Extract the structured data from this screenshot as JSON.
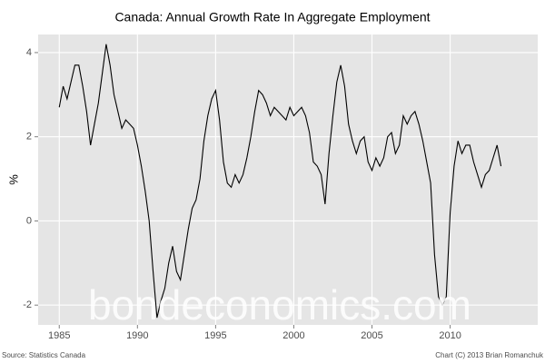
{
  "chart_data": {
    "type": "line",
    "title": "Canada: Annual Growth Rate In Aggregate Employment",
    "y_label": "%",
    "source": "Source: Statistics Canada",
    "credit": "Chart (C) 2013 Brian Romanchuk",
    "watermark": "bondeconomics.com",
    "x": [
      1985.0,
      1985.25,
      1985.5,
      1985.75,
      1986.0,
      1986.25,
      1986.5,
      1986.75,
      1987.0,
      1987.25,
      1987.5,
      1987.75,
      1988.0,
      1988.25,
      1988.5,
      1988.75,
      1989.0,
      1989.25,
      1989.5,
      1989.75,
      1990.0,
      1990.25,
      1990.5,
      1990.75,
      1991.0,
      1991.25,
      1991.5,
      1991.75,
      1992.0,
      1992.25,
      1992.5,
      1992.75,
      1993.0,
      1993.25,
      1993.5,
      1993.75,
      1994.0,
      1994.25,
      1994.5,
      1994.75,
      1995.0,
      1995.25,
      1995.5,
      1995.75,
      1996.0,
      1996.25,
      1996.5,
      1996.75,
      1997.0,
      1997.25,
      1997.5,
      1997.75,
      1998.0,
      1998.25,
      1998.5,
      1998.75,
      1999.0,
      1999.25,
      1999.5,
      1999.75,
      2000.0,
      2000.25,
      2000.5,
      2000.75,
      2001.0,
      2001.25,
      2001.5,
      2001.75,
      2002.0,
      2002.25,
      2002.5,
      2002.75,
      2003.0,
      2003.25,
      2003.5,
      2003.75,
      2004.0,
      2004.25,
      2004.5,
      2004.75,
      2005.0,
      2005.25,
      2005.5,
      2005.75,
      2006.0,
      2006.25,
      2006.5,
      2006.75,
      2007.0,
      2007.25,
      2007.5,
      2007.75,
      2008.0,
      2008.25,
      2008.5,
      2008.75,
      2009.0,
      2009.25,
      2009.5,
      2009.75,
      2010.0,
      2010.25,
      2010.5,
      2010.75,
      2011.0,
      2011.25,
      2011.5,
      2011.75,
      2012.0,
      2012.25,
      2012.5,
      2012.75,
      2013.0,
      2013.25
    ],
    "series": [
      {
        "color": "#000000",
        "values": [
          2.7,
          3.2,
          2.9,
          3.3,
          3.7,
          3.7,
          3.2,
          2.6,
          1.8,
          2.3,
          2.8,
          3.5,
          4.2,
          3.7,
          3.0,
          2.6,
          2.2,
          2.4,
          2.3,
          2.2,
          1.8,
          1.3,
          0.7,
          0,
          -1.2,
          -2.3,
          -1.9,
          -1.6,
          -1.0,
          -0.6,
          -1.2,
          -1.4,
          -0.8,
          -0.2,
          0.3,
          0.5,
          1.0,
          1.9,
          2.5,
          2.9,
          3.1,
          2.4,
          1.4,
          0.9,
          0.8,
          1.1,
          0.9,
          1.1,
          1.5,
          2.0,
          2.6,
          3.1,
          3.0,
          2.8,
          2.5,
          2.7,
          2.6,
          2.5,
          2.4,
          2.7,
          2.5,
          2.6,
          2.7,
          2.5,
          2.1,
          1.4,
          1.3,
          1.1,
          0.4,
          1.6,
          2.5,
          3.3,
          3.7,
          3.2,
          2.3,
          1.9,
          1.6,
          1.9,
          2.0,
          1.4,
          1.2,
          1.5,
          1.3,
          1.5,
          2.0,
          2.1,
          1.6,
          1.8,
          2.5,
          2.3,
          2.5,
          2.6,
          2.3,
          1.9,
          1.4,
          0.9,
          -0.8,
          -1.8,
          -2.0,
          -1.8,
          0.2,
          1.3,
          1.9,
          1.6,
          1.8,
          1.8,
          1.4,
          1.1,
          0.8,
          1.1,
          1.2,
          1.5,
          1.8,
          1.3
        ]
      }
    ],
    "xlim": [
      1983.65,
      2015.6
    ],
    "xticks": [
      1985,
      1990,
      1995,
      2000,
      2005,
      2010
    ],
    "ylim": [
      -2.47,
      4.43
    ],
    "yticks": [
      -2,
      0,
      2,
      4
    ],
    "grid": true
  }
}
